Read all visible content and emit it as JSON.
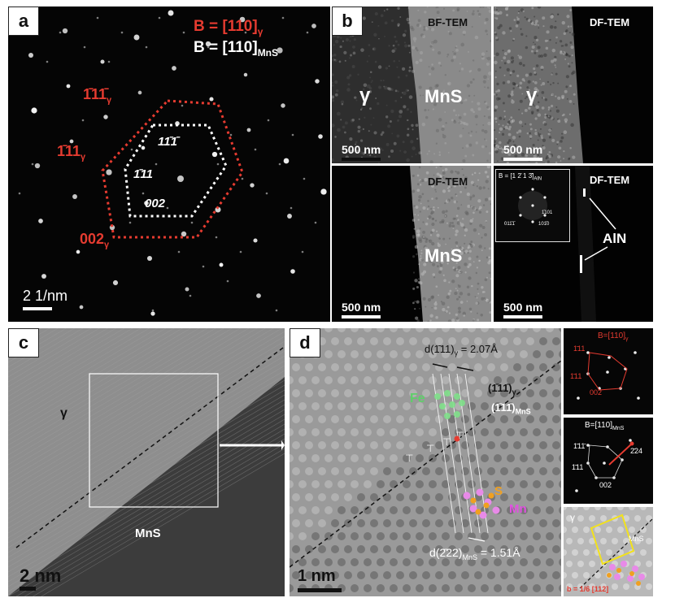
{
  "panel_a": {
    "tag": "a",
    "zone_gamma": "B = [110]",
    "zone_gamma_sub": "γ",
    "zone_mns": "B = [110]",
    "zone_mns_sub": "MnS",
    "red_labels": [
      "1̄11̄",
      "1̄11",
      "002"
    ],
    "red_sub": "γ",
    "white_labels": [
      "11̄1̄",
      "1̄11",
      "002"
    ],
    "scale": "2 1/nm"
  },
  "panel_b": {
    "tag": "b",
    "bf_title": "BF-TEM",
    "df_title": "DF-TEM",
    "gamma": "γ",
    "mns": "MnS",
    "scale": "500 nm",
    "inset_zone": "B = [1 2̄ 1 3̄]",
    "inset_zone_sub": "AlN",
    "inset_spots": [
      "011̄1̄",
      "101̄0",
      "1̄101"
    ],
    "aln": "AlN"
  },
  "panel_c": {
    "tag": "c",
    "gamma": "γ",
    "mns": "MnS",
    "scale": "2 nm"
  },
  "panel_d": {
    "tag": "d",
    "d_top": "d(1̄11)",
    "d_top_sub": "γ",
    "d_top_val": " = 2.07Å",
    "plane_gamma": "(1̄11̄)",
    "plane_gamma_sub": "γ",
    "plane_mns": "(1̄11̄)",
    "plane_mns_sub": "MnS",
    "fe": "Fe",
    "s": "S",
    "mn": "Mn",
    "d_bottom": "d(2̄22)",
    "d_bottom_sub": "MnS",
    "d_bottom_val": " = 1.51Å",
    "scale": "1 nm",
    "fft_top_zone": "B=[110]",
    "fft_top_zone_sub": "γ",
    "fft_top_labels": [
      "1̄11",
      "1̄11",
      "002"
    ],
    "fft_mid_zone": "B=[110]",
    "fft_mid_zone_sub": "MnS",
    "fft_mid_labels": [
      "1̄11̄",
      "1̄11",
      "002",
      "2̄24"
    ],
    "model_gamma": "γ",
    "model_mns": "MnS",
    "burgers": "b = 1/6 [112]"
  },
  "colors": {
    "red": "#e53b30",
    "green": "#5fcf6a",
    "orange": "#f0a020",
    "magenta": "#e052e0",
    "yellow": "#f3e21a"
  }
}
